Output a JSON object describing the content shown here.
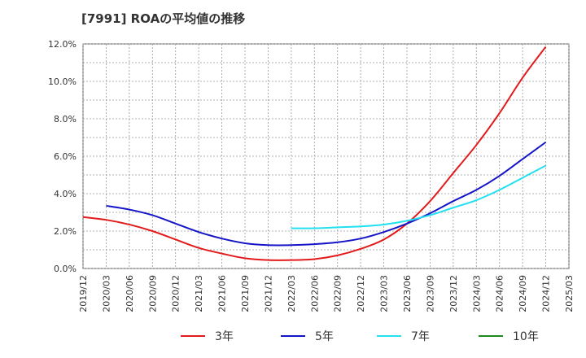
{
  "title": "[7991]  ROAの平均値の推移",
  "chart_data": {
    "type": "line",
    "title": "[7991]  ROAの平均値の推移",
    "xlabel": "",
    "ylabel": "",
    "ylim": [
      0,
      12
    ],
    "y_ticks": [
      "0.0%",
      "2.0%",
      "4.0%",
      "6.0%",
      "8.0%",
      "10.0%",
      "12.0%"
    ],
    "x_ticks": [
      "2019/12",
      "2020/03",
      "2020/06",
      "2020/09",
      "2020/12",
      "2021/03",
      "2021/06",
      "2021/09",
      "2021/12",
      "2022/03",
      "2022/06",
      "2022/09",
      "2022/12",
      "2023/03",
      "2023/06",
      "2023/09",
      "2023/12",
      "2024/03",
      "2024/06",
      "2024/09",
      "2024/12",
      "2025/03"
    ],
    "grid": true,
    "legend_position": "bottom",
    "series": [
      {
        "name": "3年",
        "color": "#e31a1c",
        "points": [
          [
            0,
            2.75
          ],
          [
            1,
            2.6
          ],
          [
            2,
            2.35
          ],
          [
            3,
            2.0
          ],
          [
            4,
            1.55
          ],
          [
            5,
            1.1
          ],
          [
            6,
            0.8
          ],
          [
            7,
            0.55
          ],
          [
            8,
            0.45
          ],
          [
            9,
            0.45
          ],
          [
            10,
            0.5
          ],
          [
            11,
            0.7
          ],
          [
            12,
            1.05
          ],
          [
            13,
            1.55
          ],
          [
            14,
            2.4
          ],
          [
            15,
            3.6
          ],
          [
            16,
            5.1
          ],
          [
            17,
            6.6
          ],
          [
            18,
            8.3
          ],
          [
            19,
            10.2
          ],
          [
            20,
            11.85
          ]
        ]
      },
      {
        "name": "5年",
        "color": "#1515c8",
        "points": [
          [
            1,
            3.35
          ],
          [
            2,
            3.15
          ],
          [
            3,
            2.85
          ],
          [
            4,
            2.4
          ],
          [
            5,
            1.95
          ],
          [
            6,
            1.6
          ],
          [
            7,
            1.35
          ],
          [
            8,
            1.25
          ],
          [
            9,
            1.25
          ],
          [
            10,
            1.3
          ],
          [
            11,
            1.4
          ],
          [
            12,
            1.6
          ],
          [
            13,
            1.95
          ],
          [
            14,
            2.4
          ],
          [
            15,
            2.95
          ],
          [
            16,
            3.6
          ],
          [
            17,
            4.2
          ],
          [
            18,
            4.95
          ],
          [
            19,
            5.85
          ],
          [
            20,
            6.75
          ]
        ]
      },
      {
        "name": "7年",
        "color": "#22e0f0",
        "points": [
          [
            9,
            2.15
          ],
          [
            10,
            2.15
          ],
          [
            11,
            2.2
          ],
          [
            12,
            2.25
          ],
          [
            13,
            2.35
          ],
          [
            14,
            2.55
          ],
          [
            15,
            2.85
          ],
          [
            16,
            3.25
          ],
          [
            17,
            3.65
          ],
          [
            18,
            4.2
          ],
          [
            19,
            4.85
          ],
          [
            20,
            5.5
          ]
        ]
      },
      {
        "name": "10年",
        "color": "#1e8a1e",
        "points": []
      }
    ]
  }
}
